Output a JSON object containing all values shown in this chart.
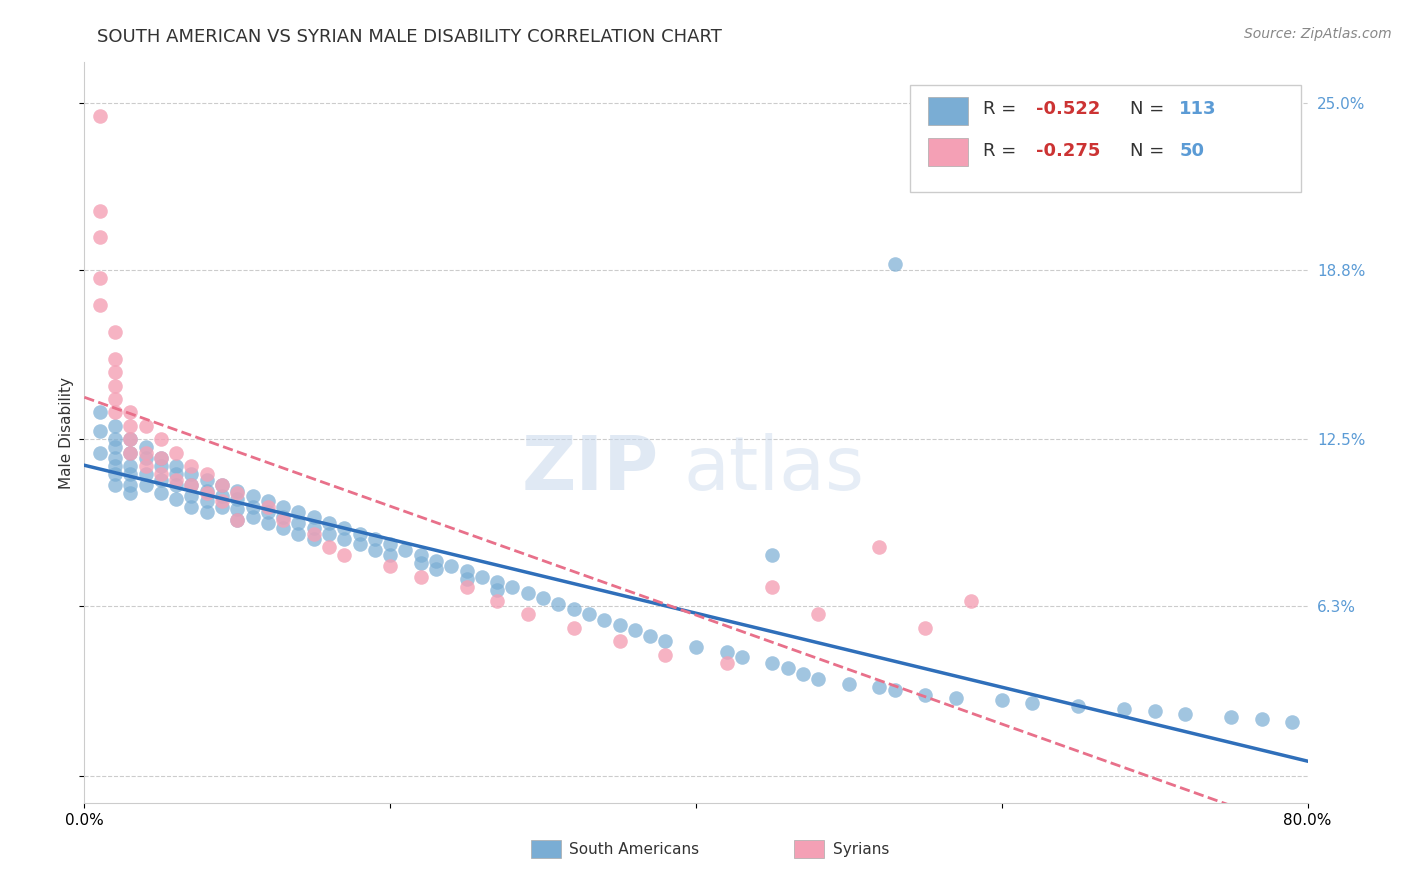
{
  "title": "SOUTH AMERICAN VS SYRIAN MALE DISABILITY CORRELATION CHART",
  "source": "Source: ZipAtlas.com",
  "ylabel": "Male Disability",
  "xmin": 0.0,
  "xmax": 0.8,
  "ymin": 0.0,
  "ymax": 0.26,
  "yticks": [
    0.0,
    0.063,
    0.125,
    0.188,
    0.25
  ],
  "ytick_labels": [
    "",
    "6.3%",
    "12.5%",
    "18.8%",
    "25.0%"
  ],
  "xticks": [
    0.0,
    0.2,
    0.4,
    0.6,
    0.8
  ],
  "xtick_labels": [
    "0.0%",
    "",
    "",
    "",
    "80.0%"
  ],
  "blue_R": "-0.522",
  "blue_N": "113",
  "pink_R": "-0.275",
  "pink_N": "50",
  "blue_color": "#7aadd4",
  "pink_color": "#f4a0b5",
  "blue_line_color": "#2f6fba",
  "pink_line_color": "#e8708a",
  "watermark_zip": "ZIP",
  "watermark_atlas": "atlas",
  "south_americans_x": [
    0.01,
    0.01,
    0.01,
    0.02,
    0.02,
    0.02,
    0.02,
    0.02,
    0.02,
    0.02,
    0.03,
    0.03,
    0.03,
    0.03,
    0.03,
    0.03,
    0.04,
    0.04,
    0.04,
    0.04,
    0.05,
    0.05,
    0.05,
    0.05,
    0.06,
    0.06,
    0.06,
    0.06,
    0.07,
    0.07,
    0.07,
    0.07,
    0.08,
    0.08,
    0.08,
    0.08,
    0.09,
    0.09,
    0.09,
    0.1,
    0.1,
    0.1,
    0.1,
    0.11,
    0.11,
    0.11,
    0.12,
    0.12,
    0.12,
    0.13,
    0.13,
    0.13,
    0.14,
    0.14,
    0.14,
    0.15,
    0.15,
    0.15,
    0.16,
    0.16,
    0.17,
    0.17,
    0.18,
    0.18,
    0.19,
    0.19,
    0.2,
    0.2,
    0.21,
    0.22,
    0.22,
    0.23,
    0.23,
    0.24,
    0.25,
    0.25,
    0.26,
    0.27,
    0.27,
    0.28,
    0.29,
    0.3,
    0.31,
    0.32,
    0.33,
    0.34,
    0.35,
    0.36,
    0.37,
    0.38,
    0.4,
    0.42,
    0.43,
    0.45,
    0.46,
    0.47,
    0.48,
    0.5,
    0.52,
    0.53,
    0.55,
    0.57,
    0.6,
    0.62,
    0.65,
    0.68,
    0.7,
    0.72,
    0.75,
    0.77,
    0.79,
    0.53,
    0.45
  ],
  "south_americans_y": [
    0.135,
    0.128,
    0.12,
    0.13,
    0.125,
    0.122,
    0.118,
    0.115,
    0.112,
    0.108,
    0.125,
    0.12,
    0.115,
    0.112,
    0.108,
    0.105,
    0.122,
    0.118,
    0.112,
    0.108,
    0.118,
    0.115,
    0.11,
    0.105,
    0.115,
    0.112,
    0.108,
    0.103,
    0.112,
    0.108,
    0.104,
    0.1,
    0.11,
    0.106,
    0.102,
    0.098,
    0.108,
    0.104,
    0.1,
    0.106,
    0.103,
    0.099,
    0.095,
    0.104,
    0.1,
    0.096,
    0.102,
    0.098,
    0.094,
    0.1,
    0.096,
    0.092,
    0.098,
    0.094,
    0.09,
    0.096,
    0.092,
    0.088,
    0.094,
    0.09,
    0.092,
    0.088,
    0.09,
    0.086,
    0.088,
    0.084,
    0.086,
    0.082,
    0.084,
    0.082,
    0.079,
    0.08,
    0.077,
    0.078,
    0.076,
    0.073,
    0.074,
    0.072,
    0.069,
    0.07,
    0.068,
    0.066,
    0.064,
    0.062,
    0.06,
    0.058,
    0.056,
    0.054,
    0.052,
    0.05,
    0.048,
    0.046,
    0.044,
    0.042,
    0.04,
    0.038,
    0.036,
    0.034,
    0.033,
    0.032,
    0.03,
    0.029,
    0.028,
    0.027,
    0.026,
    0.025,
    0.024,
    0.023,
    0.022,
    0.021,
    0.02,
    0.19,
    0.082
  ],
  "syrians_x": [
    0.01,
    0.01,
    0.01,
    0.01,
    0.01,
    0.02,
    0.02,
    0.02,
    0.02,
    0.02,
    0.02,
    0.03,
    0.03,
    0.03,
    0.03,
    0.04,
    0.04,
    0.04,
    0.05,
    0.05,
    0.05,
    0.06,
    0.06,
    0.07,
    0.07,
    0.08,
    0.08,
    0.09,
    0.09,
    0.1,
    0.1,
    0.12,
    0.13,
    0.15,
    0.16,
    0.17,
    0.2,
    0.22,
    0.25,
    0.27,
    0.29,
    0.32,
    0.35,
    0.38,
    0.42,
    0.45,
    0.48,
    0.52,
    0.55,
    0.58
  ],
  "syrians_y": [
    0.245,
    0.21,
    0.2,
    0.185,
    0.175,
    0.165,
    0.155,
    0.15,
    0.145,
    0.14,
    0.135,
    0.135,
    0.13,
    0.125,
    0.12,
    0.13,
    0.12,
    0.115,
    0.125,
    0.118,
    0.112,
    0.12,
    0.11,
    0.115,
    0.108,
    0.112,
    0.105,
    0.108,
    0.102,
    0.105,
    0.095,
    0.1,
    0.095,
    0.09,
    0.085,
    0.082,
    0.078,
    0.074,
    0.07,
    0.065,
    0.06,
    0.055,
    0.05,
    0.045,
    0.042,
    0.07,
    0.06,
    0.085,
    0.055,
    0.065
  ],
  "background_color": "#ffffff",
  "grid_color": "#cccccc",
  "title_fontsize": 13,
  "label_fontsize": 11,
  "tick_fontsize": 11
}
